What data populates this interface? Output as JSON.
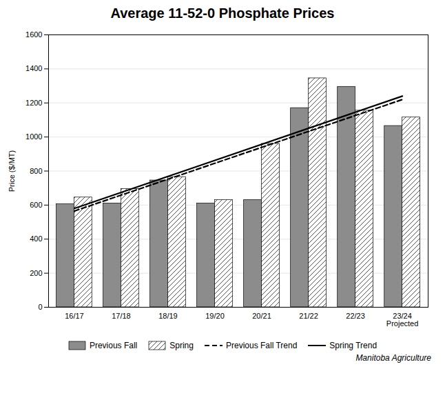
{
  "chart_data": {
    "type": "bar",
    "title": "Average 11-52-0 Phosphate Prices",
    "ylabel": "Price ($/MT)",
    "categories": [
      "16/17",
      "17/18",
      "18/19",
      "19/20",
      "20/21",
      "21/22",
      "22/23",
      "23/24\nProjected"
    ],
    "series": [
      {
        "name": "Previous Fall",
        "type": "bar",
        "color": "#8c8c8c",
        "values": [
          605,
          610,
          745,
          610,
          630,
          1170,
          1295,
          1065
        ]
      },
      {
        "name": "Spring",
        "type": "bar",
        "color": "#555555",
        "values": [
          645,
          695,
          765,
          630,
          960,
          1345,
          1155,
          1115
        ]
      },
      {
        "name": "Previous Fall Trend",
        "type": "line",
        "line_style": "dashed",
        "color": "black",
        "x": [
          "16/17",
          "23/24\nProjected"
        ],
        "values": [
          565,
          1220
        ]
      },
      {
        "name": "Spring Trend",
        "type": "line",
        "line_style": "solid",
        "color": "black",
        "x": [
          "16/17",
          "23/24\nProjected"
        ],
        "values": [
          580,
          1240
        ]
      }
    ],
    "ylim": [
      0,
      1600
    ],
    "yticks": [
      0,
      200,
      400,
      600,
      800,
      1000,
      1200,
      1400,
      1600
    ],
    "grid": true,
    "legend": "bottom",
    "caption": "Manitoba Agriculture"
  }
}
